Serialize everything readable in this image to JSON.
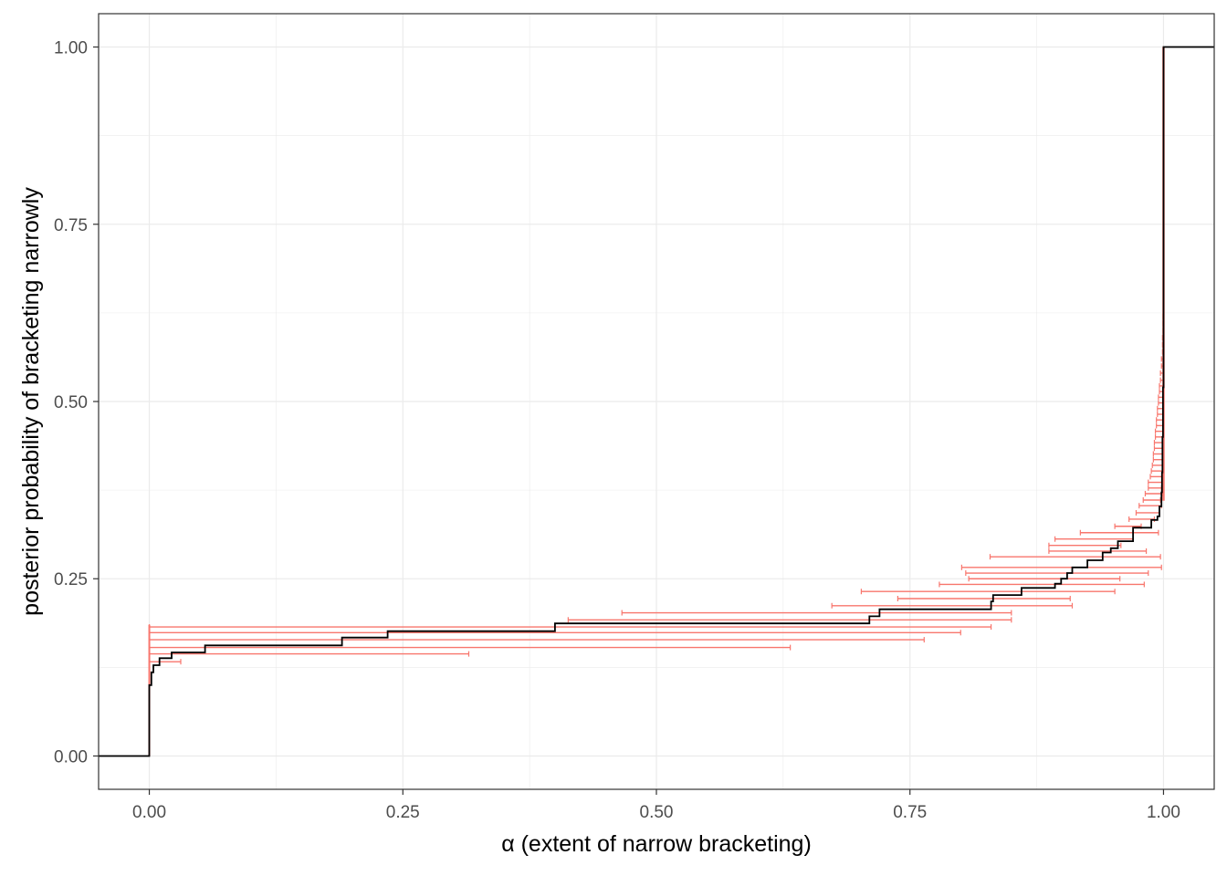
{
  "chart_data": {
    "type": "line",
    "title": "",
    "xlabel": "α (extent of narrow bracketing)",
    "ylabel": "posterior probability of bracketing narrowly",
    "xlim": [
      -0.05,
      1.05
    ],
    "ylim": [
      -0.047,
      1.047
    ],
    "x_ticks": [
      0,
      0.25,
      0.5,
      0.75,
      1.0
    ],
    "x_tick_labels": [
      "0.00",
      "0.25",
      "0.50",
      "0.75",
      "1.00"
    ],
    "y_ticks": [
      0,
      0.25,
      0.5,
      0.75,
      1.0
    ],
    "y_tick_labels": [
      "0.00",
      "0.25",
      "0.50",
      "0.75",
      "1.00"
    ],
    "grid": true,
    "colors": {
      "step": "#000000",
      "intervals": "#f8766d",
      "grid": "#ebebeb",
      "frame": "#333333"
    },
    "series": [
      {
        "kind": "step-cdf",
        "points": [
          [
            -0.05,
            0
          ],
          [
            0,
            0
          ],
          [
            0,
            0.1
          ],
          [
            0.002,
            0.118
          ],
          [
            0.004,
            0.128
          ],
          [
            0.01,
            0.138
          ],
          [
            0.022,
            0.146
          ],
          [
            0.055,
            0.156
          ],
          [
            0.19,
            0.167
          ],
          [
            0.235,
            0.176
          ],
          [
            0.4,
            0.187
          ],
          [
            0.71,
            0.197
          ],
          [
            0.72,
            0.207
          ],
          [
            0.83,
            0.218
          ],
          [
            0.832,
            0.227
          ],
          [
            0.86,
            0.237
          ],
          [
            0.893,
            0.243
          ],
          [
            0.899,
            0.25
          ],
          [
            0.905,
            0.258
          ],
          [
            0.91,
            0.266
          ],
          [
            0.925,
            0.276
          ],
          [
            0.94,
            0.287
          ],
          [
            0.948,
            0.293
          ],
          [
            0.955,
            0.303
          ],
          [
            0.97,
            0.322
          ],
          [
            0.988,
            0.333
          ],
          [
            0.994,
            0.338
          ],
          [
            0.996,
            0.352
          ],
          [
            0.998,
            0.372
          ],
          [
            0.9985,
            0.4
          ],
          [
            0.999,
            0.45
          ],
          [
            0.9995,
            0.52
          ],
          [
            1.0,
            0.52
          ],
          [
            1.0,
            1.0
          ],
          [
            1.05,
            1.0
          ]
        ]
      },
      {
        "kind": "interval-bars",
        "intervals": [
          [
            0,
            0.031,
            0.133
          ],
          [
            0,
            0.315,
            0.144
          ],
          [
            0,
            0.632,
            0.153
          ],
          [
            0,
            0.764,
            0.164
          ],
          [
            0,
            0.8,
            0.174
          ],
          [
            0,
            0.83,
            0.182
          ],
          [
            0.413,
            0.85,
            0.192
          ],
          [
            0.466,
            0.85,
            0.202
          ],
          [
            0.673,
            0.91,
            0.212
          ],
          [
            0.738,
            0.908,
            0.222
          ],
          [
            0.702,
            0.952,
            0.232
          ],
          [
            0.779,
            0.981,
            0.242
          ],
          [
            0.808,
            0.957,
            0.25
          ],
          [
            0.805,
            0.985,
            0.258
          ],
          [
            0.801,
            0.998,
            0.266
          ],
          [
            0.829,
            0.997,
            0.281
          ],
          [
            0.887,
            0.983,
            0.289
          ],
          [
            0.887,
            0.958,
            0.297
          ],
          [
            0.893,
            0.97,
            0.306
          ],
          [
            0.918,
            0.995,
            0.315
          ],
          [
            0.952,
            0.978,
            0.324
          ],
          [
            0.966,
            0.991,
            0.334
          ],
          [
            0.973,
            0.996,
            0.343
          ],
          [
            0.976,
            0.998,
            0.353
          ],
          [
            0.98,
            0.997,
            0.361
          ],
          [
            0.982,
            0.999,
            0.37
          ],
          [
            0.985,
            0.998,
            0.378
          ],
          [
            0.985,
            0.999,
            0.386
          ],
          [
            0.987,
            0.9995,
            0.394
          ],
          [
            0.988,
            0.9995,
            0.402
          ],
          [
            0.989,
            0.9995,
            0.41
          ],
          [
            0.99,
            0.9996,
            0.418
          ],
          [
            0.99,
            0.9996,
            0.426
          ],
          [
            0.991,
            0.9997,
            0.434
          ],
          [
            0.991,
            0.9997,
            0.442
          ],
          [
            0.992,
            0.9998,
            0.45
          ],
          [
            0.992,
            0.9998,
            0.458
          ],
          [
            0.993,
            0.9998,
            0.466
          ],
          [
            0.993,
            0.9998,
            0.474
          ],
          [
            0.994,
            0.9999,
            0.482
          ],
          [
            0.994,
            0.9999,
            0.49
          ],
          [
            0.995,
            0.9999,
            0.498
          ],
          [
            0.995,
            0.9999,
            0.506
          ],
          [
            0.996,
            0.9999,
            0.514
          ],
          [
            0.996,
            1.0,
            0.522
          ],
          [
            0.997,
            1.0,
            0.53
          ],
          [
            0.997,
            1.0,
            0.54
          ],
          [
            0.998,
            1.0,
            0.55
          ],
          [
            0.998,
            1.0,
            0.56
          ],
          [
            0.999,
            1.0,
            0.57
          ],
          [
            0.999,
            1.0,
            0.58
          ],
          [
            0.999,
            1.0,
            0.59
          ],
          [
            0.9995,
            1.0,
            0.6
          ],
          [
            0.9995,
            1.0,
            0.61
          ],
          [
            0.9995,
            1.0,
            0.62
          ],
          [
            0.9998,
            1.0,
            0.63
          ],
          [
            0.9998,
            1.0,
            0.64
          ]
        ]
      }
    ]
  }
}
